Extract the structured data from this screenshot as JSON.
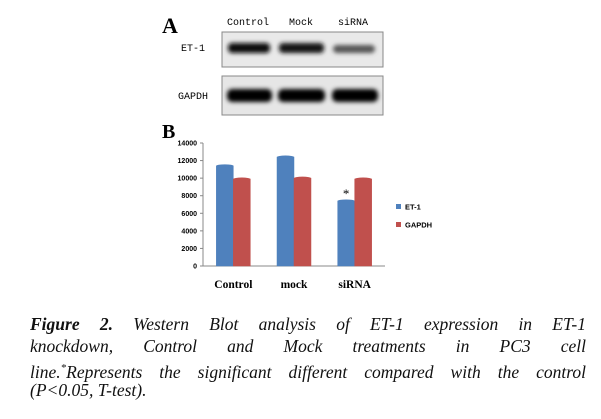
{
  "panel_a": {
    "label": "A",
    "lanes": [
      "Control",
      "Mock",
      "siRNA"
    ],
    "rows": [
      "ET-1",
      "GAPDH"
    ]
  },
  "panel_b": {
    "label": "B"
  },
  "chart_data": {
    "type": "bar",
    "categories": [
      "Control",
      "mock",
      "siRNA"
    ],
    "series": [
      {
        "name": "ET-1",
        "color": "#4f81bd",
        "values": [
          11400,
          12400,
          7400
        ]
      },
      {
        "name": "GAPDH",
        "color": "#c0504d",
        "values": [
          9900,
          10000,
          9900
        ]
      }
    ],
    "ylim": [
      0,
      14000
    ],
    "yticks": [
      0,
      2000,
      4000,
      6000,
      8000,
      10000,
      12000,
      14000
    ],
    "annotation": "*",
    "legend": "right"
  },
  "caption": {
    "label": "Figure 2.",
    "line1": "Western Blot analysis of ET-1 expression in ET-1",
    "line2": "knockdown, Control and Mock treatments in PC3 cell",
    "line3a": "line.",
    "line3sup": "*",
    "line3b": "Represents the significant different compared with the control",
    "line4": "(P<0.05, T-test)."
  }
}
